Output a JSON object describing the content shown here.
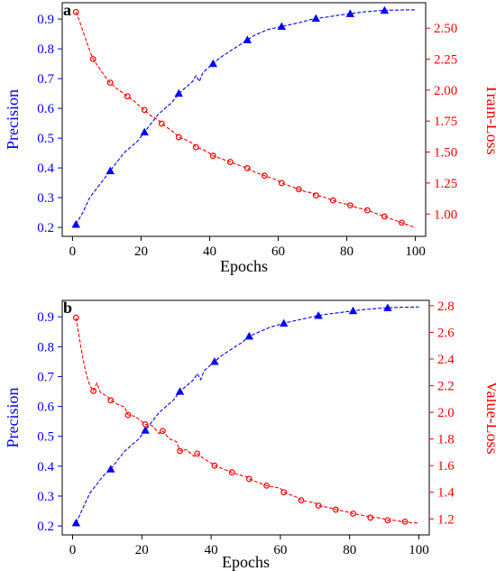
{
  "colors": {
    "left": "#0000ff",
    "right": "#ff0000",
    "axis": "#000000"
  },
  "chart_data": [
    {
      "type": "line",
      "panel_label": "a",
      "xlabel": "Epochs",
      "ylabel_left": "Precision",
      "ylabel_right": "Train-Loss",
      "xlim": [
        -3,
        103
      ],
      "ylim_left": [
        0.17,
        0.955
      ],
      "ylim_right": [
        0.82,
        2.705
      ],
      "xticks": [
        0,
        20,
        40,
        60,
        80,
        100
      ],
      "yticks_left": [
        0.2,
        0.3,
        0.4,
        0.5,
        0.6,
        0.7,
        0.8,
        0.9
      ],
      "yticks_right": [
        1.0,
        1.25,
        1.5,
        1.75,
        2.0,
        2.25,
        2.5
      ],
      "ytick_format_left": 1,
      "ytick_format_right": 2,
      "grid": false,
      "series": [
        {
          "axis": "left",
          "marker": "triangle",
          "x": [
            1,
            3,
            5,
            7,
            9,
            11,
            13,
            15,
            17,
            19,
            21,
            23,
            25,
            27,
            29,
            31,
            33,
            35,
            36,
            37,
            38,
            39,
            41,
            43,
            45,
            47,
            49,
            51,
            53,
            55,
            57,
            59,
            61,
            63,
            65,
            67,
            69,
            71,
            73,
            75,
            77,
            79,
            81,
            83,
            85,
            87,
            89,
            91,
            93,
            95,
            97,
            99,
            100
          ],
          "values": [
            0.21,
            0.25,
            0.3,
            0.33,
            0.36,
            0.39,
            0.42,
            0.45,
            0.47,
            0.49,
            0.52,
            0.55,
            0.58,
            0.6,
            0.62,
            0.65,
            0.67,
            0.69,
            0.71,
            0.69,
            0.72,
            0.73,
            0.75,
            0.77,
            0.785,
            0.8,
            0.815,
            0.83,
            0.845,
            0.855,
            0.865,
            0.87,
            0.875,
            0.88,
            0.885,
            0.89,
            0.897,
            0.902,
            0.905,
            0.908,
            0.912,
            0.915,
            0.918,
            0.921,
            0.924,
            0.926,
            0.928,
            0.929,
            0.93,
            0.93,
            0.931,
            0.931,
            0.931
          ],
          "marker_x": [
            1,
            11,
            21,
            31,
            41,
            51,
            61,
            71,
            81,
            91
          ]
        },
        {
          "axis": "right",
          "marker": "circle",
          "x": [
            1,
            2,
            3,
            4,
            5,
            6,
            8,
            10,
            11,
            13,
            15,
            16,
            18,
            20,
            21,
            23,
            25,
            26,
            28,
            30,
            31,
            33,
            35,
            36,
            38,
            40,
            41,
            43,
            45,
            46,
            48,
            50,
            51,
            53,
            55,
            56,
            58,
            60,
            61,
            63,
            65,
            66,
            68,
            70,
            71,
            73,
            75,
            76,
            78,
            80,
            81,
            83,
            85,
            86,
            88,
            90,
            91,
            93,
            95,
            96,
            98,
            100
          ],
          "values": [
            2.63,
            2.56,
            2.48,
            2.4,
            2.32,
            2.25,
            2.17,
            2.09,
            2.06,
            2.01,
            1.97,
            1.95,
            1.91,
            1.86,
            1.84,
            1.79,
            1.76,
            1.73,
            1.69,
            1.65,
            1.62,
            1.6,
            1.57,
            1.54,
            1.52,
            1.49,
            1.47,
            1.45,
            1.43,
            1.42,
            1.4,
            1.38,
            1.37,
            1.34,
            1.32,
            1.31,
            1.29,
            1.27,
            1.25,
            1.23,
            1.21,
            1.2,
            1.18,
            1.17,
            1.15,
            1.14,
            1.12,
            1.11,
            1.09,
            1.08,
            1.07,
            1.05,
            1.04,
            1.03,
            1.01,
            0.99,
            0.98,
            0.96,
            0.94,
            0.93,
            0.91,
            0.89
          ],
          "marker_x": [
            1,
            6,
            11,
            16,
            21,
            26,
            31,
            36,
            41,
            46,
            51,
            56,
            61,
            66,
            71,
            76,
            81,
            86,
            91,
            96
          ]
        }
      ]
    },
    {
      "type": "line",
      "panel_label": "b",
      "xlabel": "Epochs",
      "ylabel_left": "Precision",
      "ylabel_right": "Value-Loss",
      "xlim": [
        -3,
        103
      ],
      "ylim_left": [
        0.17,
        0.955
      ],
      "ylim_right": [
        1.08,
        2.84
      ],
      "xticks": [
        0,
        20,
        40,
        60,
        80,
        100
      ],
      "yticks_left": [
        0.2,
        0.3,
        0.4,
        0.5,
        0.6,
        0.7,
        0.8,
        0.9
      ],
      "yticks_right": [
        1.2,
        1.4,
        1.6,
        1.8,
        2.0,
        2.2,
        2.4,
        2.6,
        2.8
      ],
      "ytick_format_left": 1,
      "ytick_format_right": 1,
      "grid": false,
      "series": [
        {
          "axis": "left",
          "marker": "triangle",
          "x": [
            1,
            3,
            5,
            7,
            9,
            11,
            13,
            15,
            17,
            19,
            21,
            23,
            25,
            27,
            29,
            31,
            33,
            35,
            36,
            37,
            38,
            39,
            41,
            43,
            45,
            47,
            49,
            51,
            53,
            55,
            57,
            59,
            61,
            63,
            65,
            67,
            69,
            71,
            73,
            75,
            77,
            79,
            81,
            83,
            85,
            87,
            89,
            91,
            93,
            95,
            97,
            99,
            100
          ],
          "values": [
            0.21,
            0.26,
            0.31,
            0.34,
            0.37,
            0.39,
            0.42,
            0.45,
            0.47,
            0.49,
            0.52,
            0.55,
            0.58,
            0.6,
            0.62,
            0.65,
            0.67,
            0.69,
            0.71,
            0.69,
            0.72,
            0.73,
            0.75,
            0.77,
            0.785,
            0.8,
            0.815,
            0.835,
            0.845,
            0.855,
            0.865,
            0.872,
            0.878,
            0.884,
            0.889,
            0.894,
            0.899,
            0.904,
            0.908,
            0.911,
            0.914,
            0.917,
            0.92,
            0.923,
            0.925,
            0.927,
            0.929,
            0.93,
            0.931,
            0.932,
            0.932,
            0.933,
            0.933
          ],
          "marker_x": [
            1,
            11,
            21,
            31,
            41,
            51,
            61,
            71,
            81,
            91
          ]
        },
        {
          "axis": "right",
          "marker": "circle",
          "x": [
            1,
            2,
            3,
            4,
            5,
            6,
            7,
            8,
            10,
            11,
            13,
            15,
            16,
            18,
            20,
            21,
            23,
            25,
            26,
            28,
            30,
            31,
            33,
            35,
            36,
            38,
            40,
            41,
            43,
            45,
            46,
            48,
            50,
            51,
            53,
            55,
            56,
            58,
            60,
            61,
            63,
            65,
            66,
            68,
            70,
            71,
            73,
            75,
            76,
            78,
            80,
            81,
            83,
            85,
            86,
            88,
            90,
            91,
            93,
            95,
            96,
            98,
            100
          ],
          "values": [
            2.71,
            2.55,
            2.4,
            2.28,
            2.2,
            2.16,
            2.22,
            2.15,
            2.12,
            2.09,
            2.06,
            2.04,
            1.98,
            1.97,
            1.93,
            1.91,
            1.9,
            1.84,
            1.86,
            1.8,
            1.78,
            1.71,
            1.72,
            1.67,
            1.69,
            1.65,
            1.62,
            1.6,
            1.58,
            1.56,
            1.55,
            1.53,
            1.52,
            1.5,
            1.48,
            1.46,
            1.45,
            1.44,
            1.43,
            1.4,
            1.38,
            1.36,
            1.34,
            1.33,
            1.32,
            1.3,
            1.29,
            1.28,
            1.27,
            1.26,
            1.25,
            1.24,
            1.23,
            1.22,
            1.21,
            1.21,
            1.2,
            1.19,
            1.19,
            1.18,
            1.18,
            1.17,
            1.17
          ],
          "marker_x": [
            1,
            6,
            11,
            16,
            21,
            26,
            31,
            36,
            41,
            46,
            51,
            56,
            61,
            66,
            71,
            76,
            81,
            86,
            91,
            96
          ]
        }
      ]
    }
  ]
}
